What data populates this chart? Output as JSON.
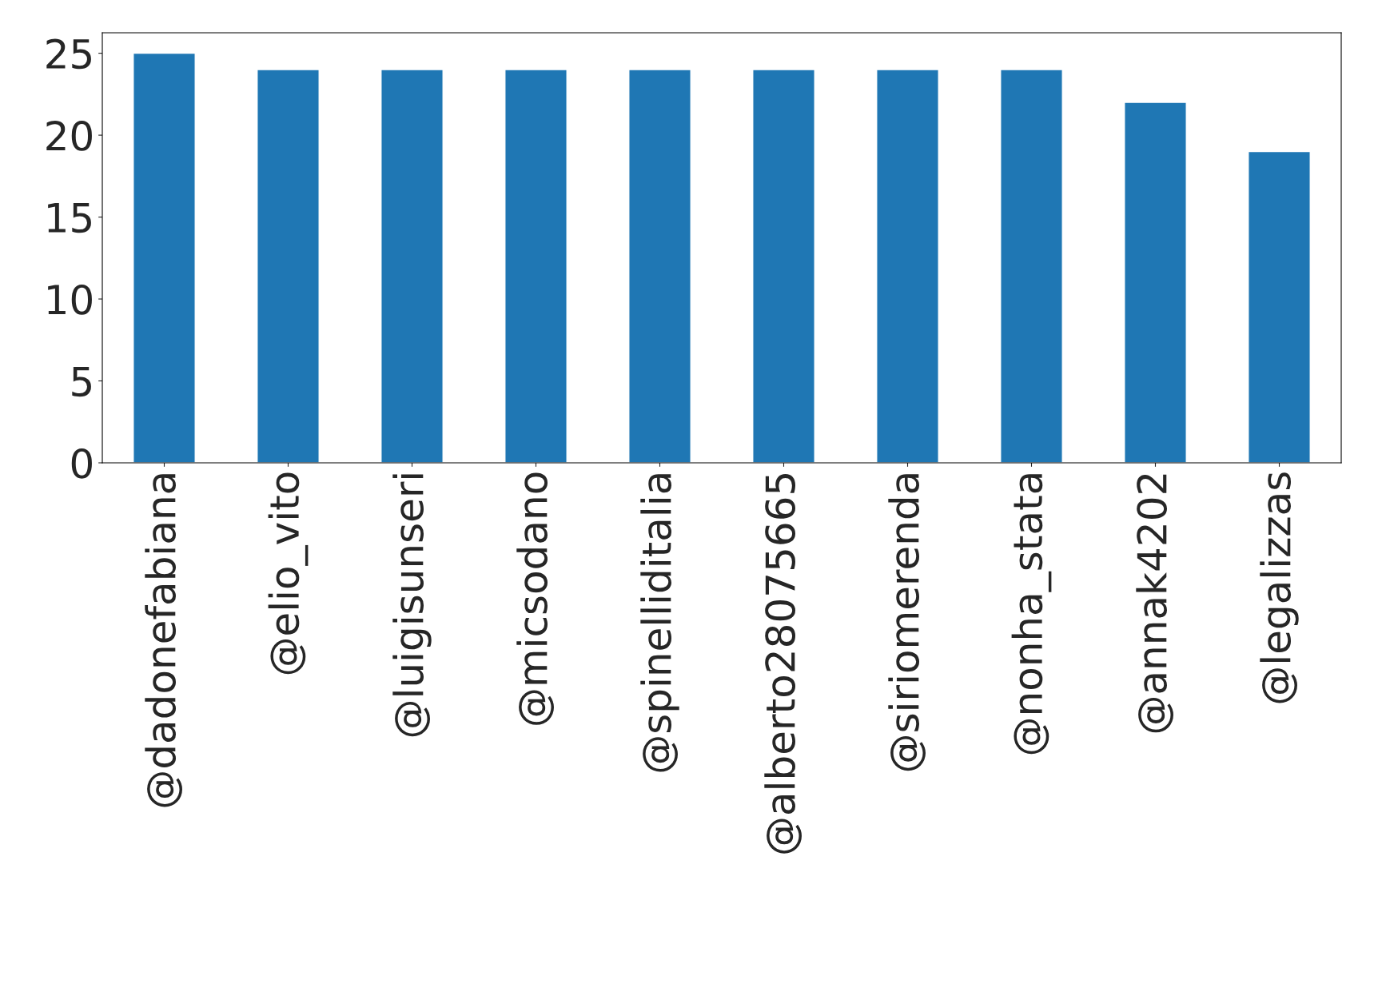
{
  "chart_data": {
    "type": "bar",
    "categories": [
      "@dadonefabiana",
      "@elio_vito",
      "@luigisunseri",
      "@micsodano",
      "@spinelliditalia",
      "@alberto28075665",
      "@siriomerenda",
      "@nonha_stata",
      "@annak4202",
      "@legalizzas"
    ],
    "values": [
      25,
      24,
      24,
      24,
      24,
      24,
      24,
      24,
      22,
      19
    ],
    "color": "#1f77b4",
    "ylim": [
      0,
      26.25
    ],
    "yticks": [
      0,
      5,
      10,
      15,
      20,
      25
    ],
    "grid": false
  }
}
